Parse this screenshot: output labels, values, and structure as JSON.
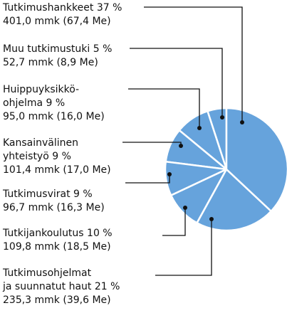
{
  "chart_data": {
    "type": "pie",
    "color": "#66a3dc",
    "categories": [
      [
        "Tutkimushankkeet"
      ],
      [
        "Muu tutkimustuki"
      ],
      [
        "Huippuyksikkö-",
        "ohjelma"
      ],
      [
        "Kansainvälinen",
        "yhteistyö"
      ],
      [
        "Tutkimusvirat"
      ],
      [
        "Tutkijankoulutus"
      ],
      [
        "Tutkimusohjelmat",
        "ja suunnatut haut"
      ]
    ],
    "values": [
      37,
      5,
      9,
      9,
      9,
      10,
      21
    ],
    "value_labels": [
      "37 %",
      "5 %",
      "9 %",
      "9 %",
      "9 %",
      "10 %",
      "21 %"
    ],
    "details": [
      "401,0 mmk (67,4 Me)",
      "52,7 mmk (8,9 Me)",
      "95,0 mmk (16,0 Me)",
      "101,4 mmk (17,0 Me)",
      "96,7 mmk (16,3 Me)",
      "109,8 mmk (18,5 Me)",
      "235,3 mmk (39,6 Me)"
    ]
  }
}
